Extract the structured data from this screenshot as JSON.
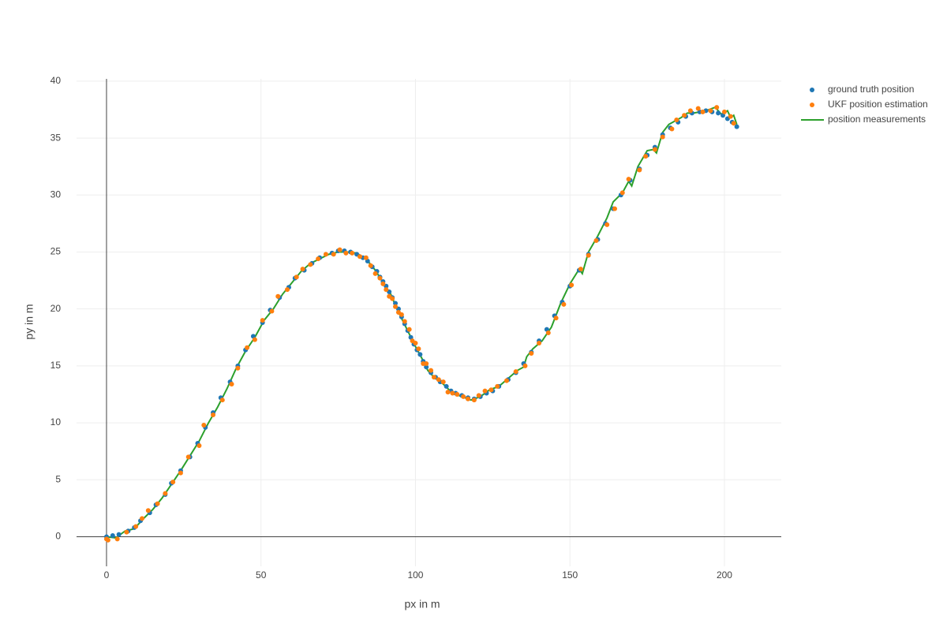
{
  "chart_data": {
    "type": "scatter",
    "xlabel": "px in m",
    "ylabel": "py in m",
    "xlim": [
      -9.7,
      218.4
    ],
    "ylim": [
      -2.6,
      40.2
    ],
    "xticks": [
      0,
      50,
      100,
      150,
      200
    ],
    "yticks": [
      0,
      5,
      10,
      15,
      20,
      25,
      30,
      35,
      40
    ],
    "grid": true,
    "legend": "top-right",
    "series": [
      {
        "name": "ground truth position",
        "color": "#1f77b4",
        "mode": "markers",
        "x": [
          0,
          2,
          4,
          7,
          9,
          11,
          14,
          16,
          19,
          21,
          24,
          27,
          29.5,
          32,
          34.5,
          37,
          40,
          42.5,
          45,
          47.5,
          50.5,
          53,
          56,
          59,
          61,
          64,
          66.5,
          69,
          73,
          75,
          77,
          79,
          81,
          83,
          84.5,
          86,
          87.5,
          88.5,
          89.5,
          90.5,
          91.5,
          92.5,
          93.5,
          94.5,
          95.5,
          96.5,
          97.5,
          98.5,
          99.5,
          100.5,
          101.5,
          102.5,
          103.5,
          105,
          106.5,
          108,
          110,
          111.5,
          113,
          115,
          117,
          119,
          121,
          123,
          125,
          127,
          130,
          132.5,
          135,
          137.5,
          140,
          142.5,
          145,
          147.5,
          150,
          153,
          156,
          159,
          161.5,
          164,
          166.5,
          169.5,
          172.5,
          175,
          177.5,
          180,
          182.5,
          185,
          187.5,
          189.5,
          192,
          194,
          196,
          198,
          199.5,
          201,
          202.5,
          204
        ],
        "values": [
          0,
          0.1,
          0.2,
          0.5,
          0.8,
          1.4,
          2.1,
          2.8,
          3.7,
          4.7,
          5.8,
          7,
          8.2,
          9.6,
          10.9,
          12.2,
          13.6,
          15,
          16.4,
          17.6,
          18.8,
          19.9,
          21,
          21.9,
          22.7,
          23.4,
          24,
          24.5,
          24.9,
          25.1,
          25.1,
          25,
          24.8,
          24.5,
          24.2,
          23.7,
          23.3,
          22.8,
          22.4,
          22,
          21.5,
          21,
          20.5,
          20,
          19.3,
          18.7,
          18.1,
          17.5,
          16.9,
          16.4,
          16,
          15.4,
          14.9,
          14.4,
          14,
          13.6,
          13.2,
          12.8,
          12.6,
          12.4,
          12.2,
          12.1,
          12.3,
          12.6,
          12.8,
          13.2,
          13.8,
          14.4,
          15.2,
          16.2,
          17.2,
          18.2,
          19.4,
          20.6,
          22,
          23.4,
          24.8,
          26.1,
          27.5,
          28.8,
          30,
          31.3,
          32.3,
          33.5,
          34.2,
          35.3,
          35.9,
          36.4,
          36.9,
          37.2,
          37.3,
          37.4,
          37.3,
          37.2,
          37,
          36.7,
          36.4,
          36
        ]
      },
      {
        "name": "UKF position estimation",
        "color": "#ff7f0e",
        "mode": "markers",
        "x": [
          0,
          0.5,
          3.5,
          6.5,
          9.5,
          11.5,
          13.5,
          16.5,
          19,
          21.5,
          24,
          26.5,
          30,
          31.5,
          34.5,
          37.5,
          40.5,
          42.5,
          45.5,
          48,
          50.5,
          53.5,
          55.5,
          58.5,
          61.5,
          63.5,
          66,
          68.5,
          71,
          73.5,
          75.5,
          77.5,
          79.5,
          82,
          84,
          85.5,
          87,
          88.5,
          89.5,
          90.5,
          91.5,
          92.5,
          93.5,
          94.5,
          95.5,
          96.5,
          98,
          99,
          100,
          101,
          102.5,
          103.5,
          105,
          106,
          107.5,
          109,
          110.5,
          112,
          113.5,
          115.5,
          117,
          119,
          120.5,
          122.5,
          124.5,
          126.5,
          129.5,
          132.5,
          135.5,
          137.5,
          140,
          143,
          145.5,
          148,
          150.5,
          153.5,
          156,
          158.5,
          162,
          164.5,
          167,
          169,
          172.5,
          174.5,
          177.5,
          180,
          183,
          184.5,
          187,
          189,
          191.5,
          193,
          195.5,
          197.5,
          200,
          202,
          203
        ],
        "values": [
          -0.2,
          -0.3,
          -0.2,
          0.4,
          0.9,
          1.6,
          2.3,
          2.9,
          3.8,
          4.8,
          5.6,
          7,
          8,
          9.8,
          10.7,
          12,
          13.4,
          14.8,
          16.6,
          17.3,
          19,
          19.8,
          21.1,
          21.7,
          22.8,
          23.5,
          23.9,
          24.4,
          24.8,
          24.8,
          25.2,
          24.9,
          24.9,
          24.6,
          24.5,
          23.8,
          23.1,
          22.7,
          22.2,
          21.7,
          21.1,
          20.9,
          20.2,
          19.7,
          19.5,
          18.9,
          18.2,
          17.2,
          17,
          16.5,
          15.2,
          15.2,
          14.6,
          14,
          13.8,
          13.6,
          12.7,
          12.6,
          12.5,
          12.3,
          12.1,
          12,
          12.4,
          12.8,
          12.9,
          13.2,
          13.7,
          14.5,
          15,
          16.1,
          17,
          17.9,
          19.2,
          20.4,
          22.1,
          23.5,
          24.7,
          26,
          27.4,
          28.8,
          30.2,
          31.4,
          32.2,
          33.4,
          34,
          35.1,
          35.8,
          36.6,
          37,
          37.4,
          37.6,
          37.3,
          37.4,
          37.7,
          37.3,
          36.9,
          36.3
        ]
      },
      {
        "name": "position measurements",
        "color": "#2ca02c",
        "mode": "lines",
        "x": [
          0,
          3,
          6,
          9,
          12,
          15,
          18,
          21,
          24,
          27,
          30,
          33,
          36,
          39,
          42,
          45,
          48,
          51,
          54,
          57,
          60,
          63,
          66,
          69,
          72,
          75,
          78,
          81,
          84,
          87,
          90,
          92,
          94,
          96,
          98,
          100,
          102,
          104,
          106,
          109,
          112,
          115,
          118,
          121,
          124,
          127,
          130,
          133,
          135,
          136,
          138,
          141,
          144,
          147,
          150,
          153,
          154,
          156,
          159,
          162,
          164,
          167,
          169,
          170,
          172,
          175,
          177,
          178,
          180,
          182,
          184,
          186,
          188,
          190,
          192,
          194,
          197,
          199,
          201,
          202,
          203,
          204
        ],
        "values": [
          0,
          -0.1,
          0.5,
          0.7,
          1.6,
          2.4,
          3.4,
          4.6,
          5.8,
          7.1,
          8.4,
          10,
          11.4,
          13,
          14.8,
          16.3,
          17.5,
          19,
          20,
          21.3,
          22.3,
          23.3,
          24,
          24.4,
          24.8,
          25,
          25,
          24.9,
          24.4,
          23.4,
          22.1,
          21.3,
          20,
          18.9,
          17.8,
          16.7,
          15.7,
          14.6,
          14,
          13.4,
          12.6,
          12.3,
          12,
          12.3,
          12.9,
          13.2,
          13.9,
          14.6,
          14.9,
          15.8,
          16.5,
          17.2,
          18.4,
          20.5,
          22.2,
          23.5,
          23.1,
          25,
          26.4,
          28,
          29.4,
          30.2,
          31.2,
          30.8,
          32.5,
          33.9,
          34,
          33.7,
          35.5,
          36.2,
          36.5,
          36.8,
          37.2,
          37.2,
          37.3,
          37.4,
          37.7,
          37.1,
          37.4,
          36.8,
          37,
          36.2
        ]
      }
    ]
  }
}
